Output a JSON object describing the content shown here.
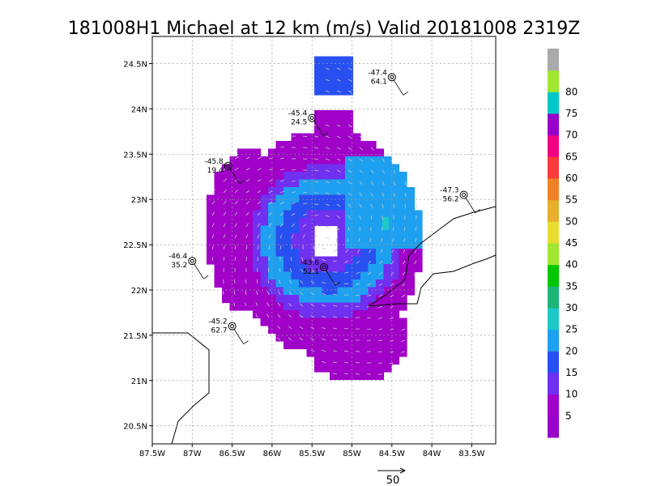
{
  "title": "181008H1 Michael at 12 km (m/s) Valid 20181008 2319Z",
  "colors": {
    "c0": "#a000c8",
    "c5": "#8c00c8",
    "c10": "#7030f0",
    "c15": "#2850f0",
    "c20": "#1ea0f0",
    "c25": "#1ec8c8",
    "c30": "#1eb478",
    "c35": "#00c800",
    "c40": "#a0e632",
    "c45": "#e6dc32",
    "c50": "#e6af2d",
    "c55": "#f08228",
    "c60": "#fa3c3c",
    "c65": "#f00082",
    "c70": "#9600c8",
    "c75": "#00c8c8",
    "c80": "#a0e632",
    "c85": "#aaaaaa"
  },
  "chart_data": {
    "type": "map",
    "lon_ticks": [
      "87.5W",
      "87W",
      "86.5W",
      "86W",
      "85.5W",
      "85W",
      "84.5W",
      "84W",
      "83.5W"
    ],
    "lat_ticks": [
      "24.5N",
      "24N",
      "23.5N",
      "23N",
      "22.5N",
      "22N",
      "21.5N",
      "21N",
      "20.5N"
    ],
    "lon_range": [
      -87.5,
      -83.2
    ],
    "lat_range": [
      20.3,
      24.8
    ],
    "grid": true,
    "colorbar": {
      "labels": [
        "5",
        "10",
        "15",
        "20",
        "25",
        "30",
        "35",
        "40",
        "45",
        "50",
        "55",
        "60",
        "65",
        "70",
        "75",
        "80"
      ],
      "bands": [
        "#9600c8",
        "#a000c8",
        "#7030f0",
        "#2850f0",
        "#1ea0f0",
        "#1ec8c8",
        "#1eb478",
        "#00c800",
        "#a0e632",
        "#e6dc32",
        "#e6af2d",
        "#f08228",
        "#fa3c3c",
        "#f00082",
        "#9600c8",
        "#00c8c8",
        "#a0e632",
        "#aaaaaa"
      ]
    },
    "observations": [
      {
        "lon": -84.5,
        "lat": 24.35,
        "top": "-47.4",
        "bottom": "64.1"
      },
      {
        "lon": -85.5,
        "lat": 23.9,
        "top": "-45.4",
        "bottom": "24.5"
      },
      {
        "lon": -86.55,
        "lat": 23.37,
        "top": "-45.8",
        "bottom": "19.4"
      },
      {
        "lon": -83.6,
        "lat": 23.05,
        "top": "-47.3",
        "bottom": "56.2"
      },
      {
        "lon": -87.0,
        "lat": 22.32,
        "top": "-46.4",
        "bottom": "35.2"
      },
      {
        "lon": -85.35,
        "lat": 22.25,
        "top": "-43.6",
        "bottom": "52.1"
      },
      {
        "lon": -86.5,
        "lat": 21.6,
        "top": "-45.2",
        "bottom": "62.7"
      }
    ],
    "reference_vector": "50"
  }
}
